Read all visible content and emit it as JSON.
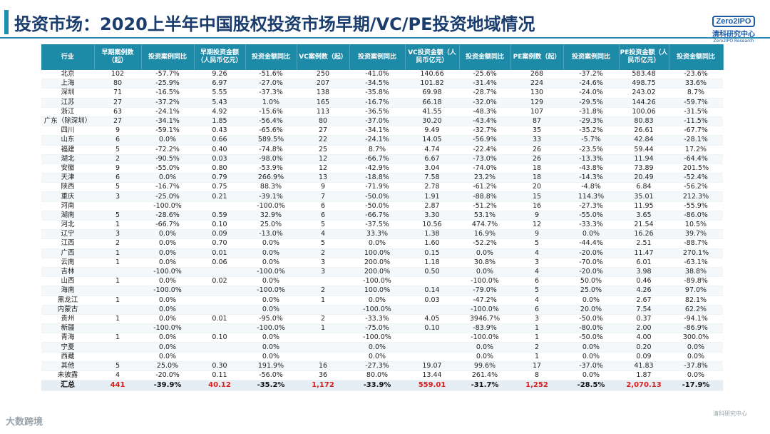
{
  "header": {
    "title": "投资市场：2020上半年中国股权投资市场早期/VC/PE投资地域情况",
    "logo_box": "Zero2IPO",
    "logo_cn": "清科研究中心",
    "logo_en": "Zero2IPO Research"
  },
  "columns": [
    "行业",
    "早期案例数（起）",
    "投资案例同比",
    "早期投资金额（人民币亿元）",
    "投资金额同比",
    "VC案例数（起）",
    "投资案例同比",
    "VC投资金额（人民币亿元）",
    "投资金额同比",
    "PE案例数（起）",
    "投资案例同比",
    "PE投资金额（人民币亿元）",
    "投资金额同比"
  ],
  "rows": [
    [
      "北京",
      "102",
      "-57.7%",
      "9.26",
      "-51.6%",
      "250",
      "-41.0%",
      "140.66",
      "-25.6%",
      "268",
      "-37.2%",
      "583.48",
      "-23.6%"
    ],
    [
      "上海",
      "80",
      "-25.9%",
      "6.97",
      "-27.0%",
      "207",
      "-34.5%",
      "101.82",
      "-31.4%",
      "224",
      "-24.6%",
      "498.75",
      "33.6%"
    ],
    [
      "深圳",
      "71",
      "-16.5%",
      "5.55",
      "-37.3%",
      "138",
      "-35.8%",
      "69.98",
      "-28.7%",
      "130",
      "-24.0%",
      "243.02",
      "8.7%"
    ],
    [
      "江苏",
      "27",
      "-37.2%",
      "5.43",
      "1.0%",
      "165",
      "-16.7%",
      "66.18",
      "-32.0%",
      "129",
      "-29.5%",
      "144.26",
      "-59.7%"
    ],
    [
      "浙江",
      "63",
      "-24.1%",
      "4.92",
      "-15.6%",
      "113",
      "-36.5%",
      "41.55",
      "-48.3%",
      "107",
      "-31.8%",
      "100.06",
      "-31.5%"
    ],
    [
      "广东（除深圳）",
      "27",
      "-34.1%",
      "1.85",
      "-56.4%",
      "80",
      "-37.0%",
      "30.20",
      "-43.4%",
      "87",
      "-29.3%",
      "80.83",
      "-11.5%"
    ],
    [
      "四川",
      "9",
      "-59.1%",
      "0.43",
      "-65.6%",
      "27",
      "-34.1%",
      "9.49",
      "-32.7%",
      "35",
      "-35.2%",
      "26.61",
      "-67.7%"
    ],
    [
      "山东",
      "6",
      "0.0%",
      "0.66",
      "589.5%",
      "22",
      "-24.1%",
      "14.05",
      "-56.9%",
      "33",
      "-5.7%",
      "42.84",
      "-28.1%"
    ],
    [
      "福建",
      "5",
      "-72.2%",
      "0.40",
      "-74.8%",
      "25",
      "8.7%",
      "4.74",
      "-22.4%",
      "26",
      "-23.5%",
      "59.44",
      "17.2%"
    ],
    [
      "湖北",
      "2",
      "-90.5%",
      "0.03",
      "-98.0%",
      "12",
      "-66.7%",
      "6.67",
      "-73.0%",
      "26",
      "-13.3%",
      "11.94",
      "-64.4%"
    ],
    [
      "安徽",
      "9",
      "-55.0%",
      "0.80",
      "-53.9%",
      "12",
      "-42.9%",
      "3.04",
      "-74.0%",
      "18",
      "-43.8%",
      "73.89",
      "201.5%"
    ],
    [
      "天津",
      "6",
      "0.0%",
      "0.79",
      "266.9%",
      "13",
      "-18.8%",
      "7.58",
      "23.2%",
      "18",
      "-14.3%",
      "20.49",
      "-52.4%"
    ],
    [
      "陕西",
      "5",
      "-16.7%",
      "0.75",
      "88.3%",
      "9",
      "-71.9%",
      "2.78",
      "-61.2%",
      "20",
      "-4.8%",
      "6.84",
      "-56.2%"
    ],
    [
      "重庆",
      "3",
      "-25.0%",
      "0.21",
      "-39.1%",
      "7",
      "-50.0%",
      "1.91",
      "-88.8%",
      "15",
      "114.3%",
      "35.01",
      "212.3%"
    ],
    [
      "河南",
      "",
      "-100.0%",
      "",
      "-100.0%",
      "6",
      "-50.0%",
      "2.87",
      "-51.2%",
      "16",
      "-27.3%",
      "11.95",
      "-55.9%"
    ],
    [
      "湖南",
      "5",
      "-28.6%",
      "0.59",
      "32.9%",
      "6",
      "-66.7%",
      "3.30",
      "53.1%",
      "9",
      "-55.0%",
      "3.65",
      "-86.0%"
    ],
    [
      "河北",
      "1",
      "-66.7%",
      "0.10",
      "25.0%",
      "5",
      "-37.5%",
      "10.56",
      "474.7%",
      "12",
      "-33.3%",
      "21.54",
      "10.5%"
    ],
    [
      "辽宁",
      "3",
      "0.0%",
      "0.09",
      "-13.0%",
      "4",
      "33.3%",
      "1.38",
      "16.9%",
      "9",
      "0.0%",
      "16.26",
      "39.7%"
    ],
    [
      "江西",
      "2",
      "0.0%",
      "0.70",
      "0.0%",
      "5",
      "0.0%",
      "1.60",
      "-52.2%",
      "5",
      "-44.4%",
      "2.51",
      "-88.7%"
    ],
    [
      "广西",
      "1",
      "0.0%",
      "0.01",
      "0.0%",
      "2",
      "100.0%",
      "0.15",
      "0.0%",
      "4",
      "-20.0%",
      "11.47",
      "270.1%"
    ],
    [
      "云南",
      "1",
      "0.0%",
      "0.06",
      "0.0%",
      "3",
      "200.0%",
      "1.18",
      "30.8%",
      "3",
      "-70.0%",
      "6.01",
      "-63.1%"
    ],
    [
      "吉林",
      "",
      "-100.0%",
      "",
      "-100.0%",
      "3",
      "200.0%",
      "0.50",
      "0.0%",
      "4",
      "-20.0%",
      "3.98",
      "38.8%"
    ],
    [
      "山西",
      "1",
      "0.0%",
      "0.02",
      "0.0%",
      "",
      "-100.0%",
      "",
      "-100.0%",
      "6",
      "50.0%",
      "0.46",
      "-89.8%"
    ],
    [
      "海南",
      "",
      "-100.0%",
      "",
      "-100.0%",
      "2",
      "100.0%",
      "0.14",
      "-79.0%",
      "5",
      "25.0%",
      "4.26",
      "97.0%"
    ],
    [
      "黑龙江",
      "1",
      "0.0%",
      "",
      "0.0%",
      "1",
      "0.0%",
      "0.03",
      "-47.2%",
      "4",
      "0.0%",
      "2.67",
      "82.1%"
    ],
    [
      "内蒙古",
      "",
      "0.0%",
      "",
      "0.0%",
      "",
      "-100.0%",
      "",
      "-100.0%",
      "6",
      "20.0%",
      "7.54",
      "62.2%"
    ],
    [
      "贵州",
      "1",
      "0.0%",
      "0.01",
      "-95.0%",
      "2",
      "-33.3%",
      "4.05",
      "3946.7%",
      "3",
      "-50.0%",
      "0.37",
      "-94.1%"
    ],
    [
      "新疆",
      "",
      "-100.0%",
      "",
      "-100.0%",
      "1",
      "-75.0%",
      "0.10",
      "-83.9%",
      "1",
      "-80.0%",
      "2.00",
      "-86.9%"
    ],
    [
      "青海",
      "1",
      "0.0%",
      "0.10",
      "0.0%",
      "",
      "-100.0%",
      "",
      "-100.0%",
      "1",
      "-50.0%",
      "4.00",
      "300.0%"
    ],
    [
      "宁夏",
      "",
      "0.0%",
      "",
      "0.0%",
      "",
      "0.0%",
      "",
      "0.0%",
      "2",
      "0.0%",
      "0.20",
      "0.0%"
    ],
    [
      "西藏",
      "",
      "0.0%",
      "",
      "0.0%",
      "",
      "0.0%",
      "",
      "0.0%",
      "1",
      "0.0%",
      "0.09",
      "0.0%"
    ],
    [
      "其他",
      "5",
      "25.0%",
      "0.30",
      "191.9%",
      "16",
      "-27.3%",
      "19.07",
      "99.6%",
      "17",
      "-37.0%",
      "41.83",
      "-37.8%"
    ],
    [
      "未披露",
      "4",
      "-20.0%",
      "0.11",
      "-56.0%",
      "36",
      "80.0%",
      "13.44",
      "261.4%",
      "8",
      "0.0%",
      "1.87",
      "0.0%"
    ]
  ],
  "total": [
    "汇总",
    "441",
    "-39.9%",
    "40.12",
    "-35.2%",
    "1,172",
    "-33.9%",
    "559.01",
    "-31.7%",
    "1,252",
    "-28.5%",
    "2,070.13",
    "-17.9%"
  ],
  "footer": {
    "left": "大数跨境",
    "right": "清科研究中心"
  }
}
